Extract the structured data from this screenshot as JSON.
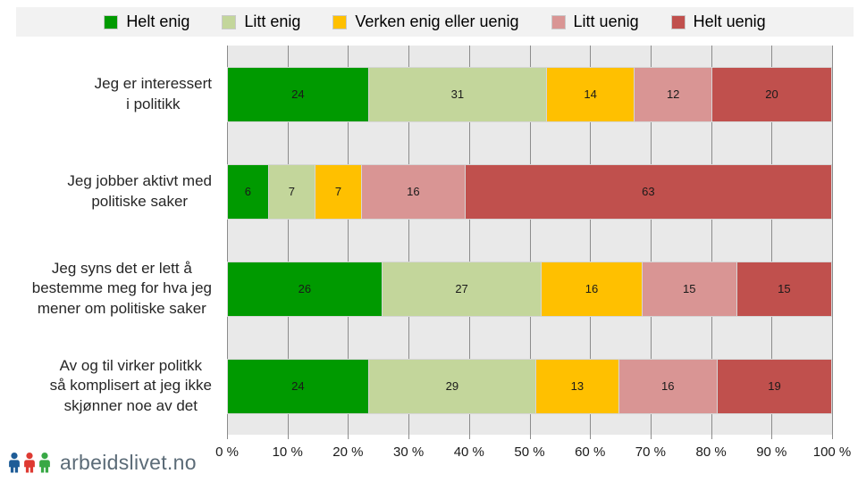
{
  "colors": {
    "helt_enig": "#009A00",
    "litt_enig": "#C3D69B",
    "verken": "#FFC000",
    "litt_uenig": "#D99594",
    "helt_uenig": "#C0504D",
    "plot_background": "#E9E9E9",
    "legend_background": "#F2F2F2",
    "gridline": "#8C8C8C",
    "logo_blue": "#1E5C97",
    "logo_red": "#DE3A32",
    "logo_green": "#38A845",
    "logo_text": "#5B6B77"
  },
  "legend": {
    "items": [
      {
        "label": "Helt enig",
        "color": "#009A00"
      },
      {
        "label": "Litt enig",
        "color": "#C3D69B"
      },
      {
        "label": "Verken enig eller uenig",
        "color": "#FFC000"
      },
      {
        "label": "Litt uenig",
        "color": "#D99594"
      },
      {
        "label": "Helt uenig",
        "color": "#C0504D"
      }
    ]
  },
  "chart_data": {
    "type": "bar",
    "stacked": true,
    "percent_stacked": true,
    "orientation": "horizontal",
    "categories": [
      [
        "Jeg er interessert",
        "i politikk"
      ],
      [
        "Jeg jobber aktivt med",
        "politiske saker"
      ],
      [
        "Jeg syns det er lett å",
        "bestemme meg for hva jeg",
        "mener om politiske saker"
      ],
      [
        "Av og til virker politkk",
        "så komplisert at jeg ikke",
        "skjønner noe av det"
      ]
    ],
    "series": [
      {
        "name": "Helt enig",
        "color": "#009A00",
        "values": [
          24,
          6,
          26,
          24
        ]
      },
      {
        "name": "Litt enig",
        "color": "#C3D69B",
        "values": [
          31,
          7,
          27,
          29
        ]
      },
      {
        "name": "Verken enig eller uenig",
        "color": "#FFC000",
        "values": [
          14,
          7,
          16,
          13
        ]
      },
      {
        "name": "Litt uenig",
        "color": "#D99594",
        "values": [
          12,
          16,
          15,
          16
        ]
      },
      {
        "name": "Helt uenig",
        "color": "#C0504D",
        "values": [
          20,
          63,
          15,
          19
        ]
      }
    ],
    "x_ticks": [
      "0 %",
      "10 %",
      "20 %",
      "30 %",
      "40 %",
      "50 %",
      "60 %",
      "70 %",
      "80 %",
      "90 %",
      "100 %"
    ],
    "xlim": [
      0,
      100
    ],
    "grid": true,
    "legend_position": "top"
  },
  "footer": {
    "logo_text": "arbeidslivet.no"
  }
}
